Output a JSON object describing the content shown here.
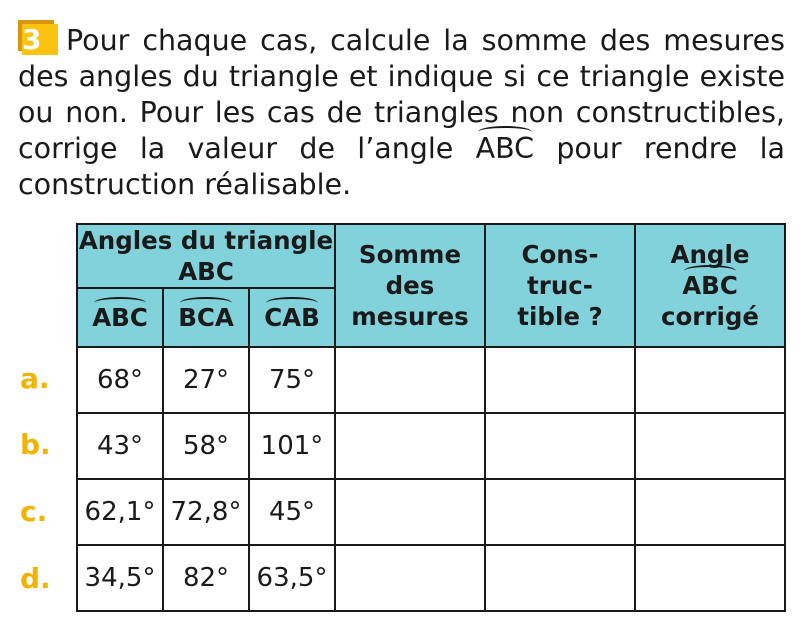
{
  "exercise": {
    "number": "3",
    "badge_color": "#fbc30f",
    "text_before": "Pour chaque cas, calcule la somme des mesures des angles du triangle et indique si ce triangle existe ou non. Pour les cas de triangles non constructibles, corrige la valeur de l’angle ",
    "angle_name": "ABC",
    "text_after": " pour rendre la construction réalisable."
  },
  "table": {
    "header_color": "#82d2dc",
    "group_header": "Angles du triangle ABC",
    "angle_columns": [
      "ABC",
      "BCA",
      "CAB"
    ],
    "sum_header": [
      "Somme",
      "des",
      "mesures"
    ],
    "constructible_header": [
      "Cons-",
      "truc-",
      "tible ?"
    ],
    "corrected_header": {
      "line1": "Angle",
      "angle": "ABC",
      "line3": "corrigé"
    },
    "label_color": "#f2b400",
    "rows": [
      {
        "label": "a.",
        "values": [
          "68°",
          "27°",
          "75°"
        ],
        "sum": "",
        "constructible": "",
        "corrected": ""
      },
      {
        "label": "b.",
        "values": [
          "43°",
          "58°",
          "101°"
        ],
        "sum": "",
        "constructible": "",
        "corrected": ""
      },
      {
        "label": "c.",
        "values": [
          "62,1°",
          "72,8°",
          "45°"
        ],
        "sum": "",
        "constructible": "",
        "corrected": ""
      },
      {
        "label": "d.",
        "values": [
          "34,5°",
          "82°",
          "63,5°"
        ],
        "sum": "",
        "constructible": "",
        "corrected": ""
      }
    ]
  }
}
